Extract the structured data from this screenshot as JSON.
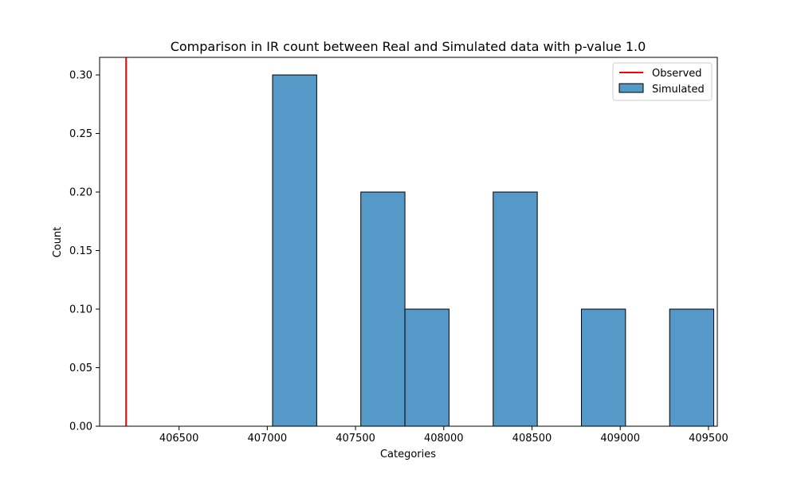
{
  "chart_data": {
    "type": "bar",
    "title": "Comparison in IR count between Real and Simulated data with p-value 1.0",
    "xlabel": "Categories",
    "ylabel": "Count",
    "xlim": [
      406050,
      409550
    ],
    "ylim": [
      0,
      0.315
    ],
    "xticks": [
      406500,
      407000,
      407500,
      408000,
      408500,
      409000,
      409500
    ],
    "yticks": [
      0.0,
      0.05,
      0.1,
      0.15,
      0.2,
      0.25,
      0.3
    ],
    "xtick_labels": [
      "406500",
      "407000",
      "407500",
      "408000",
      "408500",
      "409000",
      "409500"
    ],
    "ytick_labels": [
      "0.00",
      "0.05",
      "0.10",
      "0.15",
      "0.20",
      "0.25",
      "0.30"
    ],
    "observed": {
      "name": "Observed",
      "x": 406200,
      "color": "#ff0000"
    },
    "series": [
      {
        "name": "Simulated",
        "color": "#5599c8",
        "bins": [
          {
            "x0": 407030,
            "x1": 407280,
            "value": 0.3
          },
          {
            "x0": 407530,
            "x1": 407780,
            "value": 0.2
          },
          {
            "x0": 407780,
            "x1": 408030,
            "value": 0.1
          },
          {
            "x0": 408280,
            "x1": 408530,
            "value": 0.2
          },
          {
            "x0": 408780,
            "x1": 409030,
            "value": 0.1
          },
          {
            "x0": 409280,
            "x1": 409530,
            "value": 0.1
          }
        ]
      }
    ],
    "legend_position": "top-right",
    "grid": false
  }
}
